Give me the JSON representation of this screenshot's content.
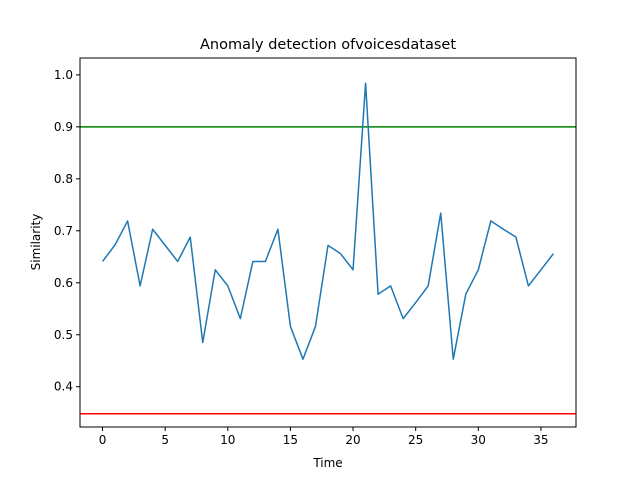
{
  "chart_data": {
    "type": "line",
    "title": "Anomaly detection ofvoicesdataset",
    "xlabel": "Time",
    "ylabel": "Similarity",
    "xlim": [
      -1.8,
      37.8
    ],
    "ylim": [
      0.3225,
      1.0325
    ],
    "xticks": [
      0,
      5,
      10,
      15,
      20,
      25,
      30,
      35
    ],
    "xtick_labels": [
      "0",
      "5",
      "10",
      "15",
      "20",
      "25",
      "30",
      "35"
    ],
    "yticks": [
      0.4,
      0.5,
      0.6,
      0.7,
      0.8,
      0.9,
      1.0
    ],
    "ytick_labels": [
      "0.4",
      "0.5",
      "0.6",
      "0.7",
      "0.8",
      "0.9",
      "1.0"
    ],
    "grid": false,
    "series": [
      {
        "color": "#1f77b4",
        "x": [
          0,
          1,
          2,
          3,
          4,
          5,
          6,
          7,
          8,
          9,
          10,
          11,
          12,
          13,
          14,
          15,
          16,
          17,
          18,
          19,
          20,
          21,
          22,
          23,
          24,
          25,
          26,
          27,
          28,
          29,
          30,
          31,
          32,
          33,
          34,
          35,
          36
        ],
        "values": [
          0.641,
          0.673,
          0.719,
          0.594,
          0.703,
          0.672,
          0.641,
          0.688,
          0.485,
          0.625,
          0.594,
          0.531,
          0.641,
          0.641,
          0.703,
          0.516,
          0.453,
          0.516,
          0.672,
          0.656,
          0.625,
          0.984,
          0.578,
          0.594,
          0.531,
          0.562,
          0.594,
          0.734,
          0.453,
          0.578,
          0.625,
          0.719,
          0.703,
          0.688,
          0.594,
          0.625,
          0.656
        ]
      }
    ],
    "reference_lines": [
      {
        "orientation": "horizontal",
        "y": 0.9,
        "color": "#008000"
      },
      {
        "orientation": "horizontal",
        "y": 0.348,
        "color": "#ff0000"
      }
    ]
  }
}
